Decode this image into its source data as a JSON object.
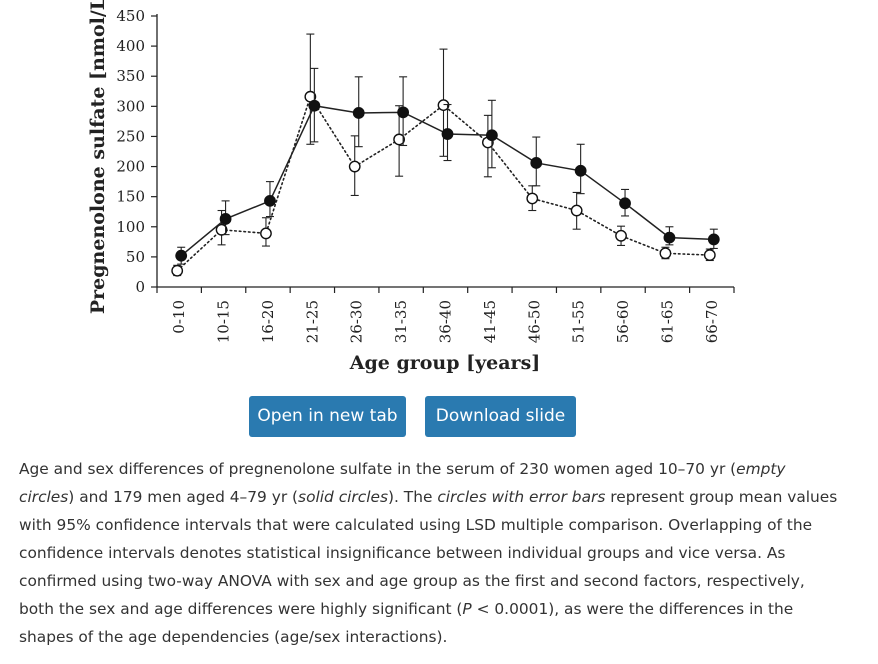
{
  "chart_data": {
    "type": "line",
    "xlabel": "Age group [years]",
    "ylabel": "Pregnenolone sulfate [nmol/L]",
    "ylim": [
      0,
      450
    ],
    "yticks": [
      "0",
      "50",
      "100",
      "150",
      "200",
      "250",
      "300",
      "350",
      "400",
      "450"
    ],
    "categories": [
      "0-10",
      "10-15",
      "16-20",
      "21-25",
      "26-30",
      "31-35",
      "36-40",
      "41-45",
      "46-50",
      "51-55",
      "56-60",
      "61-65",
      "66-70"
    ],
    "series": [
      {
        "name": "men (solid circles)",
        "marker": "filled",
        "line": "solid",
        "values": [
          52,
          113,
          143,
          301,
          289,
          290,
          254,
          252,
          206,
          193,
          139,
          82,
          79
        ],
        "lower": [
          38,
          87,
          117,
          241,
          233,
          235,
          210,
          198,
          168,
          155,
          118,
          70,
          64
        ],
        "upper": [
          66,
          143,
          175,
          363,
          349,
          349,
          303,
          310,
          249,
          237,
          162,
          100,
          96
        ]
      },
      {
        "name": "women (empty circles)",
        "marker": "open",
        "line": "dotted",
        "values": [
          27,
          95,
          89,
          316,
          200,
          245,
          302,
          240,
          147,
          127,
          85,
          56,
          53
        ],
        "lower": [
          19,
          70,
          68,
          237,
          152,
          184,
          217,
          183,
          127,
          96,
          69,
          47,
          44
        ],
        "upper": [
          36,
          127,
          115,
          420,
          251,
          301,
          395,
          285,
          168,
          157,
          101,
          66,
          63
        ]
      }
    ]
  },
  "buttons": {
    "open_label": "Open in new tab",
    "download_label": "Download slide"
  },
  "caption": {
    "t1": "Age and sex differences of pregnenolone sulfate in the serum of 230 women aged 10–70 yr (",
    "i1": "empty circles",
    "t2": ") and 179 men aged 4–79 yr (",
    "i2": "solid circles",
    "t3": "). The ",
    "i3": "circles with error bars",
    "t4": " represent group mean values with 95% confidence intervals that were calculated using LSD multiple comparison. Overlapping of the confidence intervals denotes statistical insignificance between individual groups and vice versa. As confirmed using two-way ANOVA with sex and age group as the first and second factors, respectively, both the sex and age differences were highly significant (",
    "i4": "P",
    "t5": " < 0.0001), as were the differences in the shapes of the age dependencies (age/sex interactions)."
  },
  "colors": {
    "button_bg": "#2a7ab0",
    "ink": "#222222",
    "caption_text": "#333333"
  }
}
